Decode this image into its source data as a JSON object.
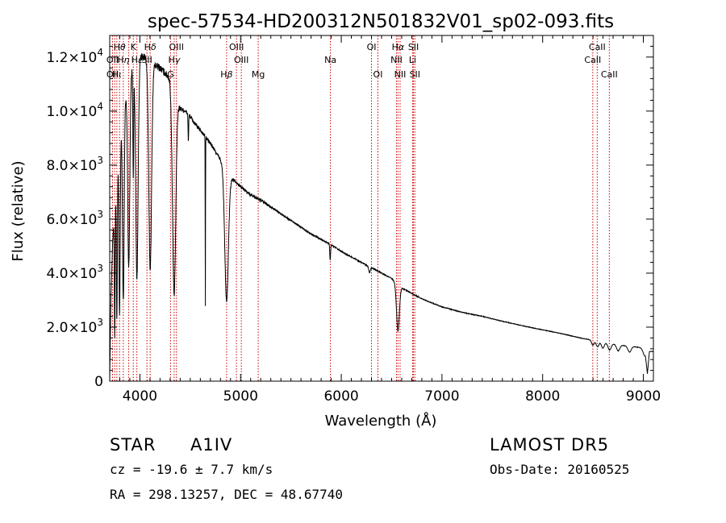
{
  "chart_data": {
    "type": "line",
    "title": "spec-57534-HD200312N501832V01_sp02-093.fits",
    "xlabel": "Wavelength (Å)",
    "ylabel": "Flux (relative)",
    "xlim": [
      3700,
      9100
    ],
    "ylim": [
      0,
      12800
    ],
    "x_ticks": [
      4000,
      5000,
      6000,
      7000,
      8000,
      9000
    ],
    "y_ticks": [
      {
        "value": 0,
        "base": "0",
        "exp": ""
      },
      {
        "value": 2000,
        "base": "2.0×10",
        "exp": "3"
      },
      {
        "value": 4000,
        "base": "4.0×10",
        "exp": "3"
      },
      {
        "value": 6000,
        "base": "6.0×10",
        "exp": "3"
      },
      {
        "value": 8000,
        "base": "8.0×10",
        "exp": "3"
      },
      {
        "value": 10000,
        "base": "1.0×10",
        "exp": "4"
      },
      {
        "value": 12000,
        "base": "1.2×10",
        "exp": "4"
      }
    ],
    "grid": false,
    "line_color": "#000000",
    "marker_color": "#cc0000",
    "continuum": [
      [
        3700,
        0
      ],
      [
        3712,
        3000
      ],
      [
        3730,
        5200
      ],
      [
        3760,
        7200
      ],
      [
        3800,
        8800
      ],
      [
        3850,
        10300
      ],
      [
        3900,
        11300
      ],
      [
        3950,
        11800
      ],
      [
        4000,
        12000
      ],
      [
        4050,
        12000
      ],
      [
        4100,
        11900
      ],
      [
        4150,
        11700
      ],
      [
        4200,
        11600
      ],
      [
        4250,
        11400
      ],
      [
        4300,
        11200
      ],
      [
        4350,
        10500
      ],
      [
        4400,
        10100
      ],
      [
        4450,
        10000
      ],
      [
        4500,
        9800
      ],
      [
        4550,
        9500
      ],
      [
        4600,
        9300
      ],
      [
        4700,
        8800
      ],
      [
        4800,
        8200
      ],
      [
        4860,
        7800
      ],
      [
        4900,
        7550
      ],
      [
        4950,
        7400
      ],
      [
        5000,
        7200
      ],
      [
        5100,
        6900
      ],
      [
        5200,
        6700
      ],
      [
        5300,
        6450
      ],
      [
        5400,
        6200
      ],
      [
        5500,
        5950
      ],
      [
        5600,
        5700
      ],
      [
        5700,
        5450
      ],
      [
        5800,
        5250
      ],
      [
        5900,
        5050
      ],
      [
        6000,
        4800
      ],
      [
        6100,
        4600
      ],
      [
        6200,
        4400
      ],
      [
        6300,
        4200
      ],
      [
        6400,
        4000
      ],
      [
        6500,
        3800
      ],
      [
        6600,
        3450
      ],
      [
        6700,
        3250
      ],
      [
        6800,
        3050
      ],
      [
        6900,
        2900
      ],
      [
        7000,
        2750
      ],
      [
        7200,
        2550
      ],
      [
        7400,
        2400
      ],
      [
        7600,
        2220
      ],
      [
        7800,
        2050
      ],
      [
        8000,
        1900
      ],
      [
        8200,
        1750
      ],
      [
        8400,
        1580
      ],
      [
        8600,
        1450
      ],
      [
        8800,
        1320
      ],
      [
        8900,
        1280
      ],
      [
        9000,
        1230
      ],
      [
        9020,
        1180
      ],
      [
        9040,
        300
      ],
      [
        9060,
        1100
      ],
      [
        9100,
        1100
      ]
    ],
    "absorption": [
      {
        "center": 3750,
        "depth": 0.75,
        "width": 4
      },
      {
        "center": 3771,
        "depth": 0.7,
        "width": 5
      },
      {
        "center": 3798,
        "depth": 0.72,
        "width": 6
      },
      {
        "center": 3835,
        "depth": 0.7,
        "width": 8
      },
      {
        "center": 3889,
        "depth": 0.62,
        "width": 10
      },
      {
        "center": 3934,
        "depth": 0.35,
        "width": 4
      },
      {
        "center": 3970,
        "depth": 0.68,
        "width": 12
      },
      {
        "center": 4102,
        "depth": 0.65,
        "width": 14
      },
      {
        "center": 4340,
        "depth": 0.7,
        "width": 16
      },
      {
        "center": 4481,
        "depth": 0.1,
        "width": 3
      },
      {
        "center": 4650,
        "depth": 0.7,
        "width": 1.5
      },
      {
        "center": 4861,
        "depth": 0.62,
        "width": 18
      },
      {
        "center": 5890,
        "depth": 0.12,
        "width": 4
      },
      {
        "center": 6280,
        "depth": 0.05,
        "width": 8
      },
      {
        "center": 6563,
        "depth": 0.48,
        "width": 14
      },
      {
        "center": 8498,
        "depth": 0.12,
        "width": 12
      },
      {
        "center": 8545,
        "depth": 0.14,
        "width": 14
      },
      {
        "center": 8598,
        "depth": 0.16,
        "width": 14
      },
      {
        "center": 8665,
        "depth": 0.18,
        "width": 16
      },
      {
        "center": 8750,
        "depth": 0.17,
        "width": 16
      },
      {
        "center": 8863,
        "depth": 0.17,
        "width": 16
      },
      {
        "center": 9015,
        "depth": 0.22,
        "width": 18
      }
    ],
    "line_markers": [
      3728,
      3750,
      3771,
      3798,
      3835,
      3889,
      3934,
      3970,
      4070,
      4102,
      4304,
      4340,
      4363,
      4861,
      4959,
      5007,
      5175,
      5892,
      6300,
      6364,
      6548,
      6563,
      6584,
      6708,
      6717,
      6731,
      8498,
      8542,
      8662
    ],
    "line_labels": [
      {
        "text": "H",
        "greek": "θ",
        "x": 3798,
        "row": 1
      },
      {
        "text": "K",
        "greek": "",
        "x": 3934,
        "row": 1
      },
      {
        "text": "H",
        "greek": "δ",
        "x": 4102,
        "row": 1
      },
      {
        "text": "OIII",
        "greek": "",
        "x": 4363,
        "row": 1
      },
      {
        "text": "OIII",
        "greek": "",
        "x": 4959,
        "row": 1
      },
      {
        "text": "OI",
        "greek": "",
        "x": 6300,
        "row": 1
      },
      {
        "text": "H",
        "greek": "α",
        "x": 6563,
        "row": 1
      },
      {
        "text": "SII",
        "greek": "",
        "x": 6717,
        "row": 1
      },
      {
        "text": "CaII",
        "greek": "",
        "x": 8542,
        "row": 1
      },
      {
        "text": "OII",
        "greek": "",
        "x": 3728,
        "row": 2
      },
      {
        "text": "H",
        "greek": "η",
        "x": 3835,
        "row": 2
      },
      {
        "text": "H",
        "greek": "ε",
        "x": 3970,
        "row": 2
      },
      {
        "text": "SII",
        "greek": "",
        "x": 4070,
        "row": 2
      },
      {
        "text": "H",
        "greek": "γ",
        "x": 4340,
        "row": 2
      },
      {
        "text": "OIII",
        "greek": "",
        "x": 5007,
        "row": 2
      },
      {
        "text": "Na",
        "greek": "",
        "x": 5892,
        "row": 2
      },
      {
        "text": "NII",
        "greek": "",
        "x": 6548,
        "row": 2
      },
      {
        "text": "Li",
        "greek": "",
        "x": 6708,
        "row": 2
      },
      {
        "text": "CaII",
        "greek": "",
        "x": 8498,
        "row": 2
      },
      {
        "text": "OII",
        "greek": "",
        "x": 3728,
        "row": 3
      },
      {
        "text": "H",
        "greek": "ι",
        "x": 3771,
        "row": 3
      },
      {
        "text": "G",
        "greek": "",
        "x": 4304,
        "row": 3
      },
      {
        "text": "H",
        "greek": "β",
        "x": 4861,
        "row": 3
      },
      {
        "text": "Mg",
        "greek": "",
        "x": 5175,
        "row": 3
      },
      {
        "text": "OI",
        "greek": "",
        "x": 6364,
        "row": 3
      },
      {
        "text": "NII",
        "greek": "",
        "x": 6584,
        "row": 3
      },
      {
        "text": "SII",
        "greek": "",
        "x": 6731,
        "row": 3
      },
      {
        "text": "CaII",
        "greek": "",
        "x": 8662,
        "row": 3
      }
    ]
  },
  "info": {
    "object_class": "STAR",
    "subclass": "A1IV",
    "survey": "LAMOST DR5",
    "redshift": "cz = -19.6 ± 7.7 km/s",
    "obs_date": "Obs-Date: 20160525",
    "coords": "RA = 298.13257, DEC =  48.67740"
  }
}
